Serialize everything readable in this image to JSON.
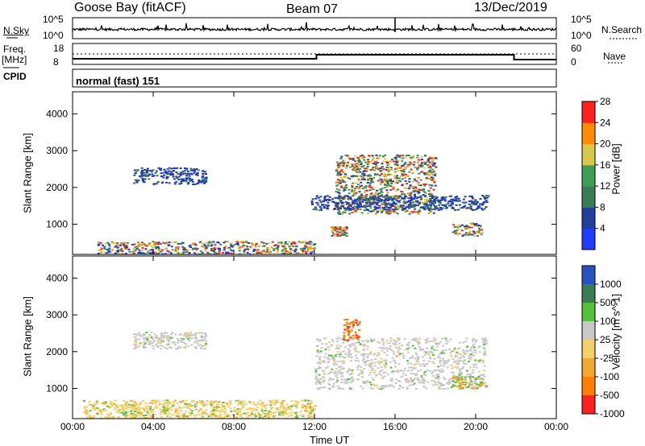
{
  "header": {
    "station": "Goose Bay (fitACF)",
    "beam": "Beam 07",
    "date": "13/Dec/2019"
  },
  "strips": {
    "nsky_label": "N.Sky",
    "nsky_top": "10^5",
    "nsky_bottom": "10^0",
    "nsearch_label": "N.Search",
    "nsearch_top": "10^5",
    "nsearch_bottom": "10^0",
    "freq_label_1": "Freq.",
    "freq_label_2": "[MHz]",
    "freq_top": "18",
    "freq_bottom": "8",
    "nave_label": "Nave",
    "nave_top": "60",
    "nave_bottom": "0",
    "cpid_label": "CPID",
    "cpid_value": "normal (fast) 151"
  },
  "chart_data": [
    {
      "type": "heatmap",
      "name": "power",
      "ylabel": "Slant Range [km]",
      "y_ticks": [
        "1000",
        "2000",
        "3000",
        "4000"
      ],
      "ylim": [
        180,
        4600
      ],
      "colorbar": {
        "label": "Power [dB]",
        "ticks": [
          "4",
          "8",
          "12",
          "16",
          "20",
          "24",
          "28"
        ],
        "range": [
          0,
          32
        ],
        "colors": [
          "#1f3cff",
          "#233f9e",
          "#3a7d54",
          "#3f9e55",
          "#d9c94a",
          "#ff8c00",
          "#ff2020"
        ]
      },
      "regions": [
        {
          "x": [
            3.0,
            6.6
          ],
          "y": [
            2100,
            2550
          ],
          "dominant": "blue/green"
        },
        {
          "x": [
            1.2,
            12.0
          ],
          "y": [
            180,
            550
          ],
          "dominant": "red/orange/green mixed"
        },
        {
          "x": [
            13.0,
            18.0
          ],
          "y": [
            1300,
            2900
          ],
          "dominant": "green/orange/red"
        },
        {
          "x": [
            12.8,
            13.6
          ],
          "y": [
            700,
            950
          ],
          "dominant": "green/red"
        },
        {
          "x": [
            18.8,
            20.3
          ],
          "y": [
            700,
            1050
          ],
          "dominant": "green/red"
        },
        {
          "x": [
            11.8,
            20.6
          ],
          "y": [
            1400,
            1800
          ],
          "dominant": "blue"
        }
      ]
    },
    {
      "type": "heatmap",
      "name": "velocity",
      "xlabel": "Time UT",
      "x_ticks": [
        "00:00",
        "04:00",
        "08:00",
        "12:00",
        "16:00",
        "20:00",
        "00:00"
      ],
      "xlim": [
        0,
        24
      ],
      "ylabel": "Slant Range [km]",
      "y_ticks": [
        "1000",
        "2000",
        "3000",
        "4000"
      ],
      "ylim": [
        180,
        4600
      ],
      "colorbar": {
        "label": "Velocity [m s^-1]",
        "ticks": [
          "1000",
          "500",
          "100",
          "25",
          "-25",
          "-100",
          "-500",
          "-1000"
        ],
        "colors": [
          "#2a52be",
          "#3a7d54",
          "#53c13a",
          "#c8c8c8",
          "#f5d06a",
          "#f0a830",
          "#ff7f00",
          "#ff2020"
        ]
      },
      "regions": [
        {
          "x": [
            3.0,
            6.6
          ],
          "y": [
            2100,
            2550
          ],
          "dominant": "grey"
        },
        {
          "x": [
            0.5,
            12.0
          ],
          "y": [
            180,
            700
          ],
          "dominant": "orange/yellow"
        },
        {
          "x": [
            13.4,
            14.2
          ],
          "y": [
            2300,
            2900
          ],
          "dominant": "orange/red"
        },
        {
          "x": [
            12.0,
            20.5
          ],
          "y": [
            1000,
            2400
          ],
          "dominant": "grey"
        },
        {
          "x": [
            18.8,
            20.3
          ],
          "y": [
            1000,
            1350
          ],
          "dominant": "green/orange"
        }
      ]
    }
  ]
}
